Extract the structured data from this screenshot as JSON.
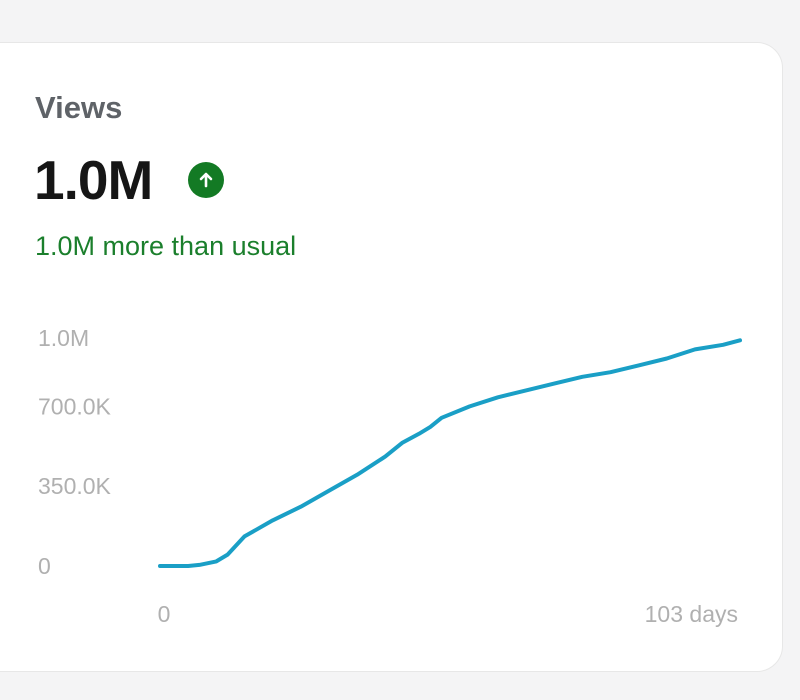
{
  "card": {
    "title": "Views",
    "value": "1.0M",
    "trend_icon": "arrow-up-icon",
    "trend_color": "#137a24",
    "comparison": "1.0M more than usual",
    "comparison_color": "#1b7f2c"
  },
  "chart_data": {
    "type": "line",
    "title": "",
    "xlabel": "",
    "ylabel": "",
    "line_color": "#1a9fc6",
    "ylim": [
      0,
      1000000
    ],
    "xlim": [
      0,
      103
    ],
    "y_tick_values": [
      0,
      350000,
      700000,
      1000000
    ],
    "y_tick_labels": [
      "0",
      "350.0K",
      "700.0K",
      "1.0M"
    ],
    "x_tick_values": [
      0,
      103
    ],
    "x_tick_labels": [
      "0",
      "103 days"
    ],
    "grid": false,
    "legend": "none",
    "series": [
      {
        "x": [
          0,
          5,
          7,
          10,
          12,
          15,
          20,
          25,
          30,
          35,
          40,
          43,
          46,
          48,
          50,
          55,
          60,
          65,
          70,
          75,
          80,
          85,
          90,
          95,
          100,
          103
        ],
        "y": [
          0,
          0,
          5000,
          20000,
          50000,
          130000,
          200000,
          260000,
          330000,
          400000,
          480000,
          540000,
          580000,
          610000,
          650000,
          700000,
          740000,
          770000,
          800000,
          830000,
          850000,
          880000,
          910000,
          950000,
          970000,
          990000
        ]
      }
    ]
  }
}
